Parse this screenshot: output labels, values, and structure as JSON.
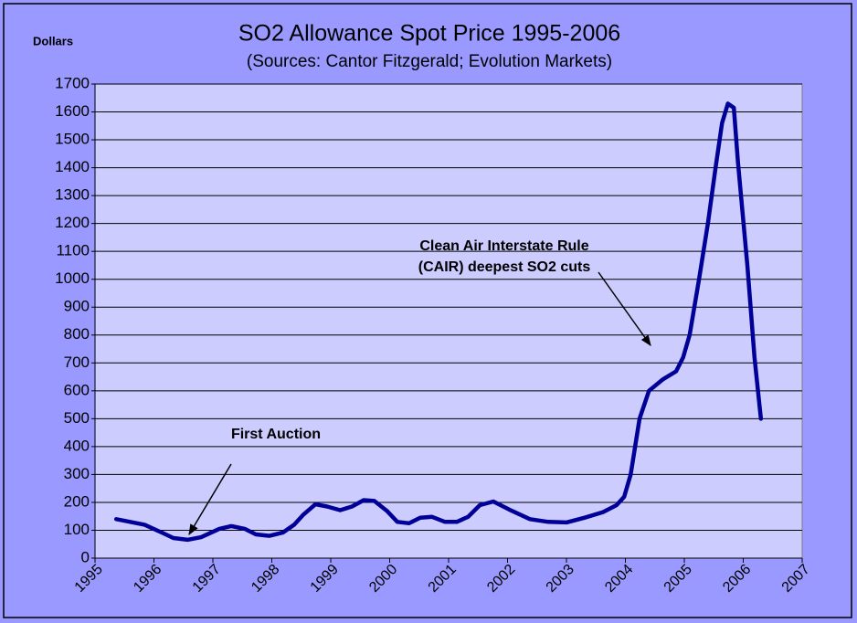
{
  "chart_data": {
    "type": "line",
    "title": "SO2 Allowance Spot Price 1995-2006",
    "subtitle": "(Sources: Cantor Fitzgerald; Evolution Markets)",
    "y_label": "Dollars",
    "annotations": [
      "Clean Air Interstate Rule",
      "(CAIR) deepest SO2 cuts",
      "First Auction"
    ],
    "x": [
      1995.36,
      1995.84,
      1996.15,
      1996.33,
      1996.57,
      1996.8,
      1997.11,
      1997.31,
      1997.54,
      1997.73,
      1997.96,
      1998.19,
      1998.38,
      1998.53,
      1998.74,
      1998.94,
      1999.16,
      1999.36,
      1999.56,
      1999.74,
      1999.95,
      2000.13,
      2000.33,
      2000.52,
      2000.72,
      2000.94,
      2001.14,
      2001.33,
      2001.53,
      2001.76,
      2002.07,
      2002.38,
      2002.69,
      2003.0,
      2003.31,
      2003.62,
      2003.85,
      2003.98,
      2004.09,
      2004.24,
      2004.4,
      2004.63,
      2004.86,
      2004.98,
      2005.09,
      2005.25,
      2005.4,
      2005.53,
      2005.64,
      2005.74,
      2005.84,
      2005.91,
      2006.07,
      2006.19,
      2006.3
    ],
    "values": [
      140,
      120,
      90,
      72,
      66,
      75,
      105,
      115,
      105,
      85,
      80,
      92,
      120,
      155,
      193,
      185,
      172,
      185,
      208,
      205,
      170,
      130,
      125,
      145,
      148,
      130,
      130,
      148,
      190,
      203,
      170,
      140,
      130,
      128,
      145,
      165,
      190,
      220,
      300,
      500,
      600,
      640,
      670,
      720,
      800,
      1000,
      1200,
      1400,
      1560,
      1630,
      1615,
      1420,
      1050,
      720,
      500
    ],
    "color": "#000099",
    "xlim": [
      1995,
      2007
    ],
    "xticks": [
      1995,
      1996,
      1997,
      1998,
      1999,
      2000,
      2001,
      2002,
      2003,
      2004,
      2005,
      2006,
      2007
    ],
    "ylim": [
      0,
      1700
    ],
    "yticks": [
      0,
      100,
      200,
      300,
      400,
      500,
      600,
      700,
      800,
      900,
      1000,
      1100,
      1200,
      1300,
      1400,
      1500,
      1600,
      1700
    ],
    "grid": true
  }
}
